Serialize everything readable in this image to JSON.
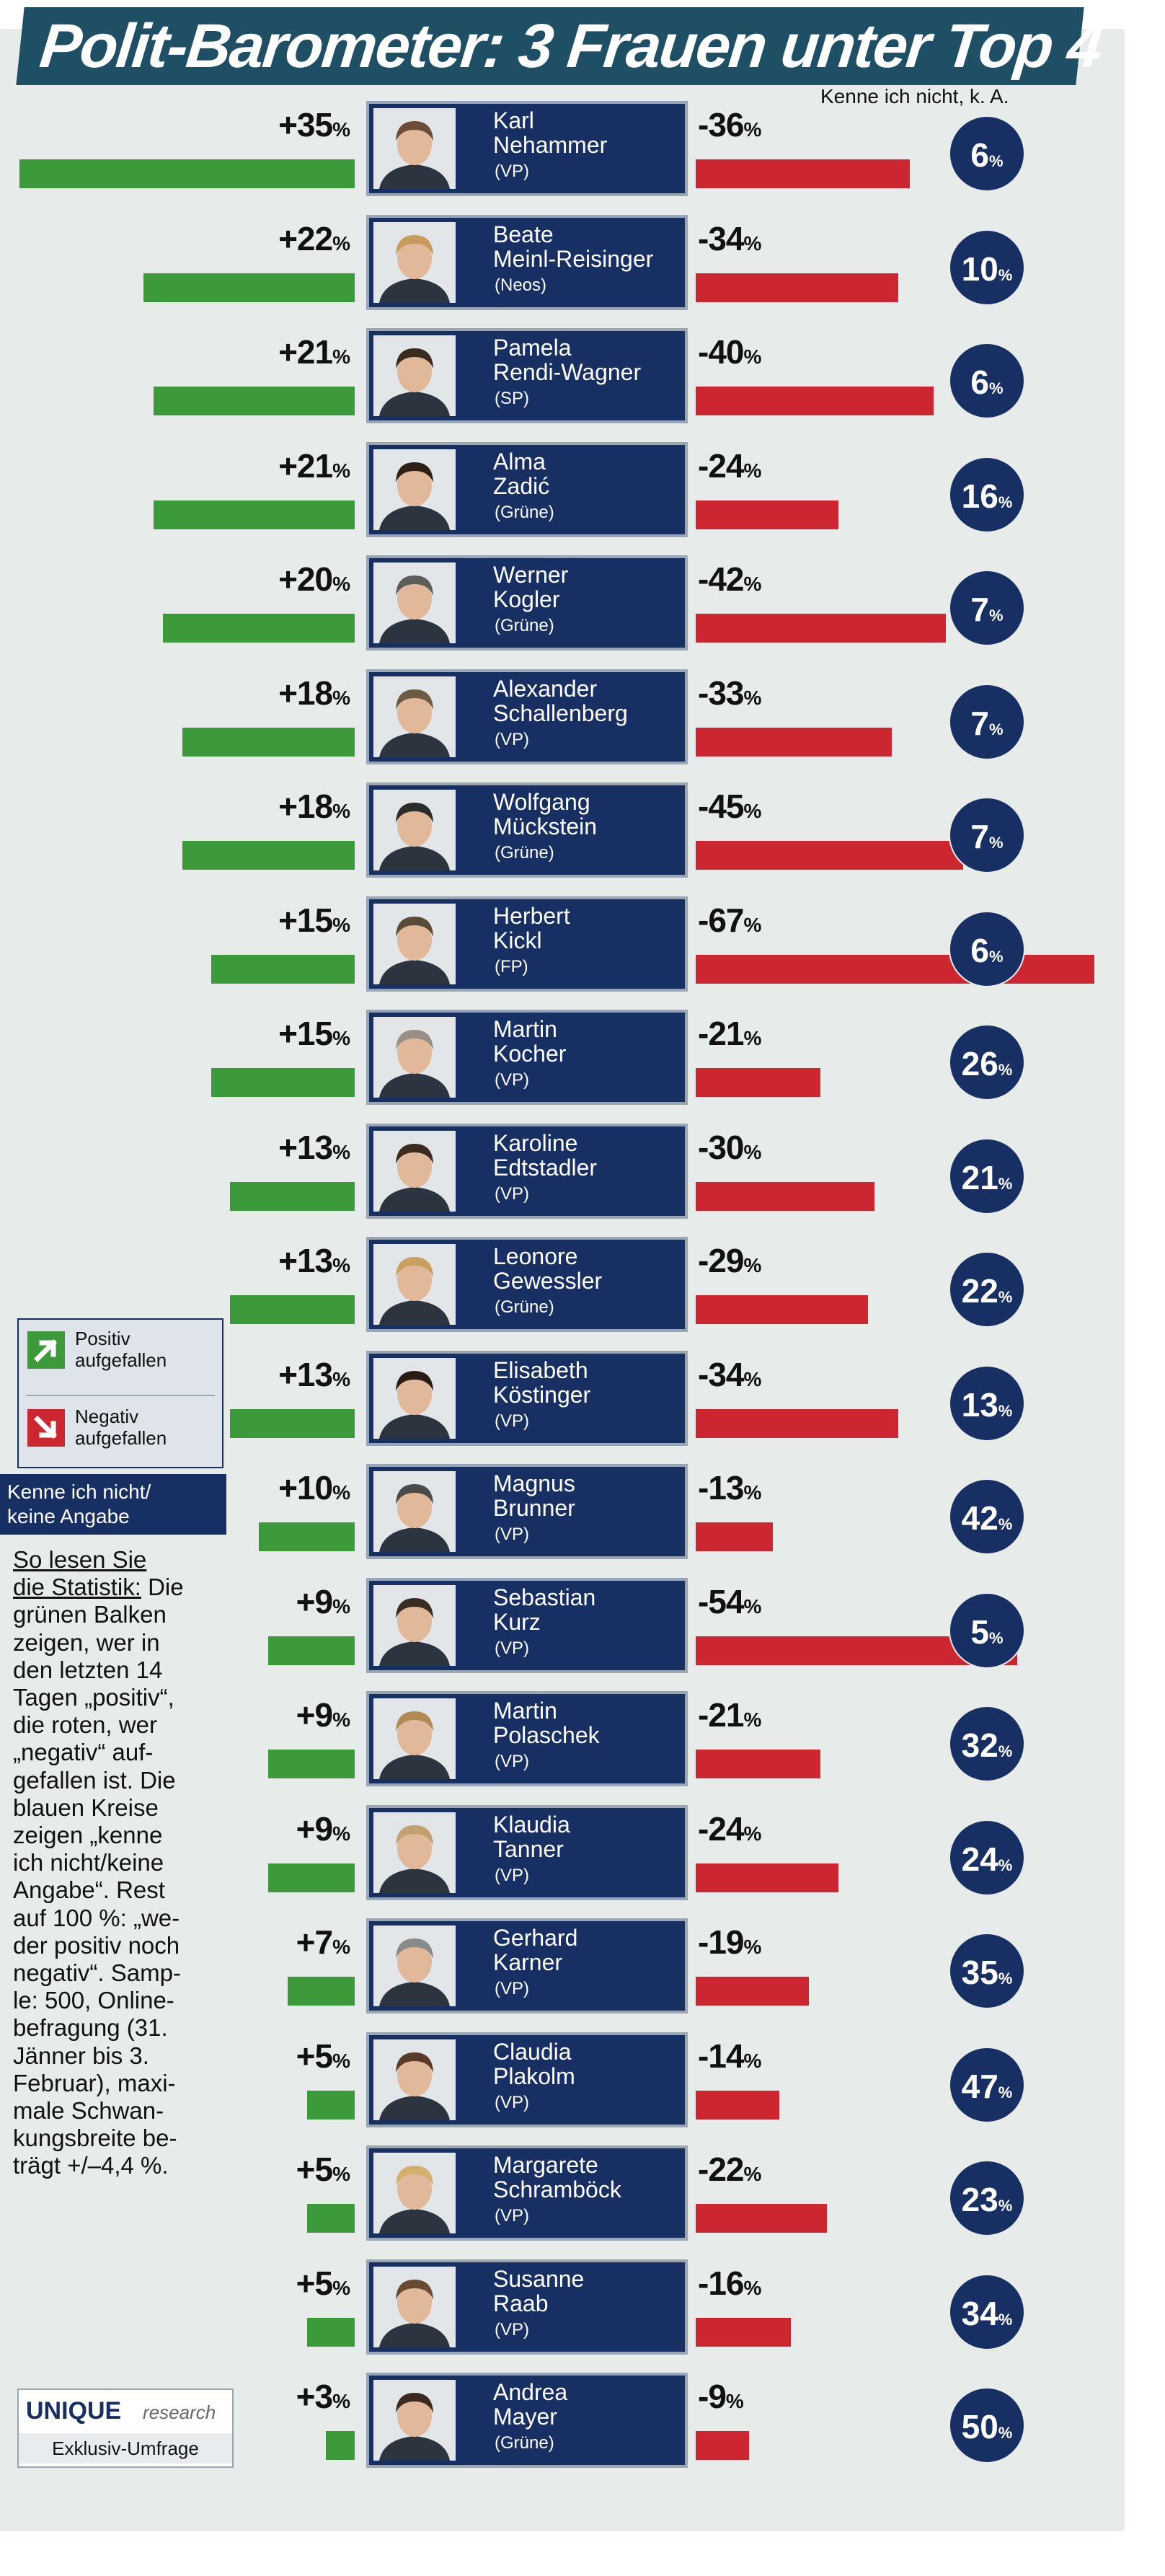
{
  "header": {
    "title": "Polit-Barometer: 3 Frauen unter Top 4",
    "dk_column_label": "Kenne ich nicht, k. A."
  },
  "legend": {
    "positive_line1": "Positiv",
    "positive_line2": "aufgefallen",
    "negative_line1": "Negativ",
    "negative_line2": "aufgefallen",
    "dk_line1": "Kenne ich nicht/",
    "dk_line2": "keine Angabe"
  },
  "explanation": {
    "lines": [
      "So lesen Sie",
      "die Statistik: Die",
      "grünen Balken",
      "zeigen, wer in",
      "den letzten 14",
      "Tagen „positiv“,",
      "die roten, wer",
      "„negativ“ auf-",
      "gefallen ist. Die",
      "blauen Kreise",
      "zeigen „kenne",
      "ich nicht/keine",
      "Angabe“. Rest",
      "auf 100 %: „we-",
      "der positiv noch",
      "negativ“. Samp-",
      "le: 500, Online-",
      "befragung (31.",
      "Jänner bis 3.",
      "Februar), maxi-",
      "male Schwan-",
      "kungsbreite be-",
      "trägt  +/–4,4 %."
    ]
  },
  "source": {
    "brand": "UNIQUE",
    "brand_suffix": "research",
    "note": "Exklusiv-Umfrage"
  },
  "colors": {
    "positive": "#3d9a3b",
    "negative": "#cc2630",
    "navy": "#172f63",
    "title_bg": "#1e4f64"
  },
  "chart_data": {
    "type": "bar",
    "title": "Polit-Barometer: 3 Frauen unter Top 4",
    "unit": "%",
    "series": [
      {
        "name": "Positiv aufgefallen",
        "values": [
          35,
          22,
          21,
          21,
          20,
          18,
          18,
          15,
          15,
          13,
          13,
          13,
          10,
          9,
          9,
          9,
          7,
          5,
          5,
          5,
          3
        ]
      },
      {
        "name": "Negativ aufgefallen",
        "values": [
          -36,
          -34,
          -40,
          -24,
          -42,
          -33,
          -45,
          -67,
          -21,
          -30,
          -29,
          -34,
          -13,
          -54,
          -21,
          -24,
          -19,
          -14,
          -22,
          -16,
          -9
        ]
      },
      {
        "name": "Kenne ich nicht/keine Angabe",
        "values": [
          6,
          10,
          6,
          16,
          7,
          7,
          7,
          6,
          26,
          21,
          22,
          13,
          42,
          5,
          32,
          24,
          35,
          47,
          23,
          34,
          50
        ]
      }
    ],
    "politicians": [
      {
        "line1": "Karl",
        "line2": "Nehammer",
        "party": "(VP)",
        "pos": "+35",
        "neg": "-36",
        "dk": "6",
        "pos_v": 35,
        "neg_v": 36,
        "dk_v": 6
      },
      {
        "line1": "Beate",
        "line2": "Meinl-Reisinger",
        "party": "(Neos)",
        "pos": "+22",
        "neg": "-34",
        "dk": "10",
        "pos_v": 22,
        "neg_v": 34,
        "dk_v": 10
      },
      {
        "line1": "Pamela",
        "line2": "Rendi-Wagner",
        "party": "(SP)",
        "pos": "+21",
        "neg": "-40",
        "dk": "6",
        "pos_v": 21,
        "neg_v": 40,
        "dk_v": 6
      },
      {
        "line1": "Alma",
        "line2": "Zadić",
        "party": "(Grüne)",
        "pos": "+21",
        "neg": "-24",
        "dk": "16",
        "pos_v": 21,
        "neg_v": 24,
        "dk_v": 16
      },
      {
        "line1": "Werner",
        "line2": "Kogler",
        "party": "(Grüne)",
        "pos": "+20",
        "neg": "-42",
        "dk": "7",
        "pos_v": 20,
        "neg_v": 42,
        "dk_v": 7
      },
      {
        "line1": "Alexander",
        "line2": "Schallenberg",
        "party": "(VP)",
        "pos": "+18",
        "neg": "-33",
        "dk": "7",
        "pos_v": 18,
        "neg_v": 33,
        "dk_v": 7
      },
      {
        "line1": "Wolfgang",
        "line2": "Mückstein",
        "party": "(Grüne)",
        "pos": "+18",
        "neg": "-45",
        "dk": "7",
        "pos_v": 18,
        "neg_v": 45,
        "dk_v": 7
      },
      {
        "line1": "Herbert",
        "line2": "Kickl",
        "party": "(FP)",
        "pos": "+15",
        "neg": "-67",
        "dk": "6",
        "pos_v": 15,
        "neg_v": 67,
        "dk_v": 6
      },
      {
        "line1": "Martin",
        "line2": "Kocher",
        "party": "(VP)",
        "pos": "+15",
        "neg": "-21",
        "dk": "26",
        "pos_v": 15,
        "neg_v": 21,
        "dk_v": 26
      },
      {
        "line1": "Karoline",
        "line2": "Edtstadler",
        "party": "(VP)",
        "pos": "+13",
        "neg": "-30",
        "dk": "21",
        "pos_v": 13,
        "neg_v": 30,
        "dk_v": 21
      },
      {
        "line1": "Leonore",
        "line2": "Gewessler",
        "party": "(Grüne)",
        "pos": "+13",
        "neg": "-29",
        "dk": "22",
        "pos_v": 13,
        "neg_v": 29,
        "dk_v": 22
      },
      {
        "line1": "Elisabeth",
        "line2": "Köstinger",
        "party": "(VP)",
        "pos": "+13",
        "neg": "-34",
        "dk": "13",
        "pos_v": 13,
        "neg_v": 34,
        "dk_v": 13
      },
      {
        "line1": "Magnus",
        "line2": "Brunner",
        "party": "(VP)",
        "pos": "+10",
        "neg": "-13",
        "dk": "42",
        "pos_v": 10,
        "neg_v": 13,
        "dk_v": 42
      },
      {
        "line1": "Sebastian",
        "line2": "Kurz",
        "party": "(VP)",
        "pos": "+9",
        "neg": "-54",
        "dk": "5",
        "pos_v": 9,
        "neg_v": 54,
        "dk_v": 5
      },
      {
        "line1": "Martin",
        "line2": "Polaschek",
        "party": "(VP)",
        "pos": "+9",
        "neg": "-21",
        "dk": "32",
        "pos_v": 9,
        "neg_v": 21,
        "dk_v": 32
      },
      {
        "line1": "Klaudia",
        "line2": "Tanner",
        "party": "(VP)",
        "pos": "+9",
        "neg": "-24",
        "dk": "24",
        "pos_v": 9,
        "neg_v": 24,
        "dk_v": 24
      },
      {
        "line1": "Gerhard",
        "line2": "Karner",
        "party": "(VP)",
        "pos": "+7",
        "neg": "-19",
        "dk": "35",
        "pos_v": 7,
        "neg_v": 19,
        "dk_v": 35
      },
      {
        "line1": "Claudia",
        "line2": "Plakolm",
        "party": "(VP)",
        "pos": "+5",
        "neg": "-14",
        "dk": "47",
        "pos_v": 5,
        "neg_v": 14,
        "dk_v": 47
      },
      {
        "line1": "Margarete",
        "line2": "Schramböck",
        "party": "(VP)",
        "pos": "+5",
        "neg": "-22",
        "dk": "23",
        "pos_v": 5,
        "neg_v": 22,
        "dk_v": 23
      },
      {
        "line1": "Susanne",
        "line2": "Raab",
        "party": "(VP)",
        "pos": "+5",
        "neg": "-16",
        "dk": "34",
        "pos_v": 5,
        "neg_v": 16,
        "dk_v": 34
      },
      {
        "line1": "Andrea",
        "line2": "Mayer",
        "party": "(Grüne)",
        "pos": "+3",
        "neg": "-9",
        "dk": "50",
        "pos_v": 3,
        "neg_v": 9,
        "dk_v": 50
      }
    ]
  }
}
